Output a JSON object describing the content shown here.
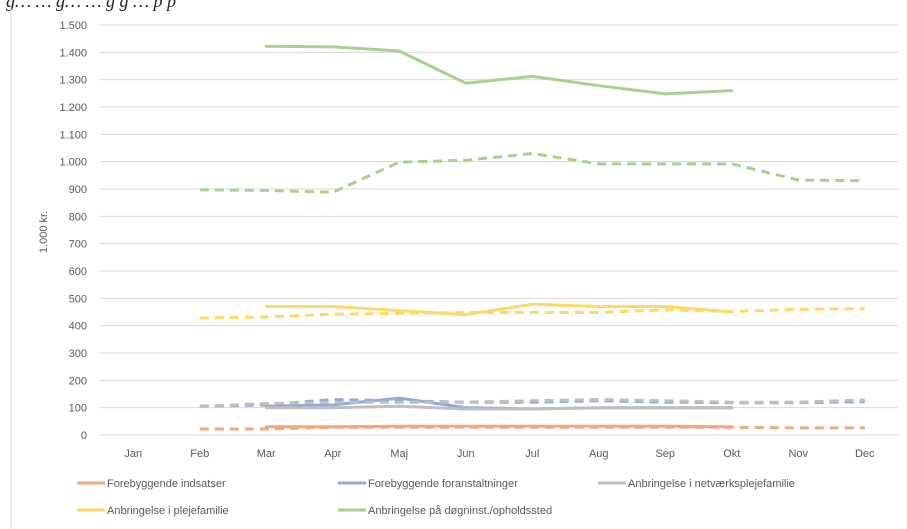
{
  "chart_data": {
    "type": "line",
    "title": "",
    "header_fragment": "g… … g… … g g … p p",
    "ylabel": "1.000 kr.",
    "xlabel": "",
    "categories": [
      "Jan",
      "Feb",
      "Mar",
      "Apr",
      "Maj",
      "Jun",
      "Jul",
      "Aug",
      "Sep",
      "Okt",
      "Nov",
      "Dec"
    ],
    "ylim": [
      0,
      1500
    ],
    "yticks": [
      0,
      100,
      200,
      300,
      400,
      500,
      600,
      700,
      800,
      900,
      1000,
      1100,
      1200,
      1300,
      1400,
      1500
    ],
    "ytick_labels": [
      "0",
      "100",
      "200",
      "300",
      "400",
      "500",
      "600",
      "700",
      "800",
      "900",
      "1.000",
      "1.100",
      "1.200",
      "1.300",
      "1.400",
      "1.500"
    ],
    "grid": true,
    "legend_position": "bottom",
    "series": [
      {
        "name": "Forebyggende indsatser",
        "color": "#F4A77A",
        "style": "solid",
        "values": [
          null,
          null,
          30,
          30,
          32,
          32,
          32,
          32,
          32,
          30,
          null,
          null
        ]
      },
      {
        "name": "Forebyggende indsatser",
        "color": "#F4A77A",
        "style": "dashed",
        "legend": false,
        "values": [
          null,
          22,
          22,
          28,
          28,
          28,
          28,
          28,
          28,
          28,
          26,
          26
        ]
      },
      {
        "name": "Forebyggende foranstaltninger",
        "color": "#8FAADC",
        "style": "solid",
        "values": [
          null,
          null,
          105,
          110,
          135,
          100,
          95,
          100,
          100,
          100,
          null,
          null
        ]
      },
      {
        "name": "Forebyggende foranstaltninger",
        "color": "#8FAADC",
        "style": "dashed",
        "legend": false,
        "values": [
          null,
          105,
          110,
          130,
          125,
          120,
          120,
          125,
          120,
          118,
          118,
          122
        ]
      },
      {
        "name": "Anbringelse i netværksplejefamilie",
        "color": "#BFBFBF",
        "style": "solid",
        "values": [
          null,
          null,
          100,
          100,
          105,
          95,
          95,
          100,
          100,
          100,
          null,
          null
        ]
      },
      {
        "name": "Anbringelse i netværksplejefamilie",
        "color": "#BFBFBF",
        "style": "dashed",
        "legend": false,
        "values": [
          null,
          105,
          115,
          120,
          120,
          120,
          125,
          130,
          125,
          120,
          120,
          128
        ]
      },
      {
        "name": "Anbringelse i plejefamilie",
        "color": "#FFD966",
        "style": "solid",
        "values": [
          null,
          null,
          470,
          470,
          455,
          440,
          478,
          470,
          470,
          450,
          null,
          null
        ]
      },
      {
        "name": "Anbringelse i plejefamilie",
        "color": "#FFD966",
        "style": "dashed",
        "legend": false,
        "values": [
          null,
          428,
          432,
          442,
          445,
          448,
          448,
          448,
          458,
          452,
          460,
          462
        ]
      },
      {
        "name": "Anbringelse på døgninst./opholdssted",
        "color": "#A9D18E",
        "style": "solid",
        "values": [
          null,
          null,
          1422,
          1420,
          1405,
          1287,
          1312,
          1278,
          1248,
          1260,
          null,
          null
        ]
      },
      {
        "name": "Anbringelse på døgninst./opholdssted",
        "color": "#A9D18E",
        "style": "dashed",
        "legend": false,
        "values": [
          null,
          897,
          895,
          888,
          998,
          1005,
          1030,
          992,
          992,
          992,
          933,
          930
        ]
      }
    ],
    "legend": [
      {
        "label": "Forebyggende indsatser",
        "color": "#F4A77A"
      },
      {
        "label": "Forebyggende foranstaltninger",
        "color": "#8FAADC"
      },
      {
        "label": "Anbringelse i netværksplejefamilie",
        "color": "#BFBFBF"
      },
      {
        "label": "Anbringelse i plejefamilie",
        "color": "#FFD966"
      },
      {
        "label": "Anbringelse på døgninst./opholdssted",
        "color": "#A9D18E"
      }
    ]
  }
}
